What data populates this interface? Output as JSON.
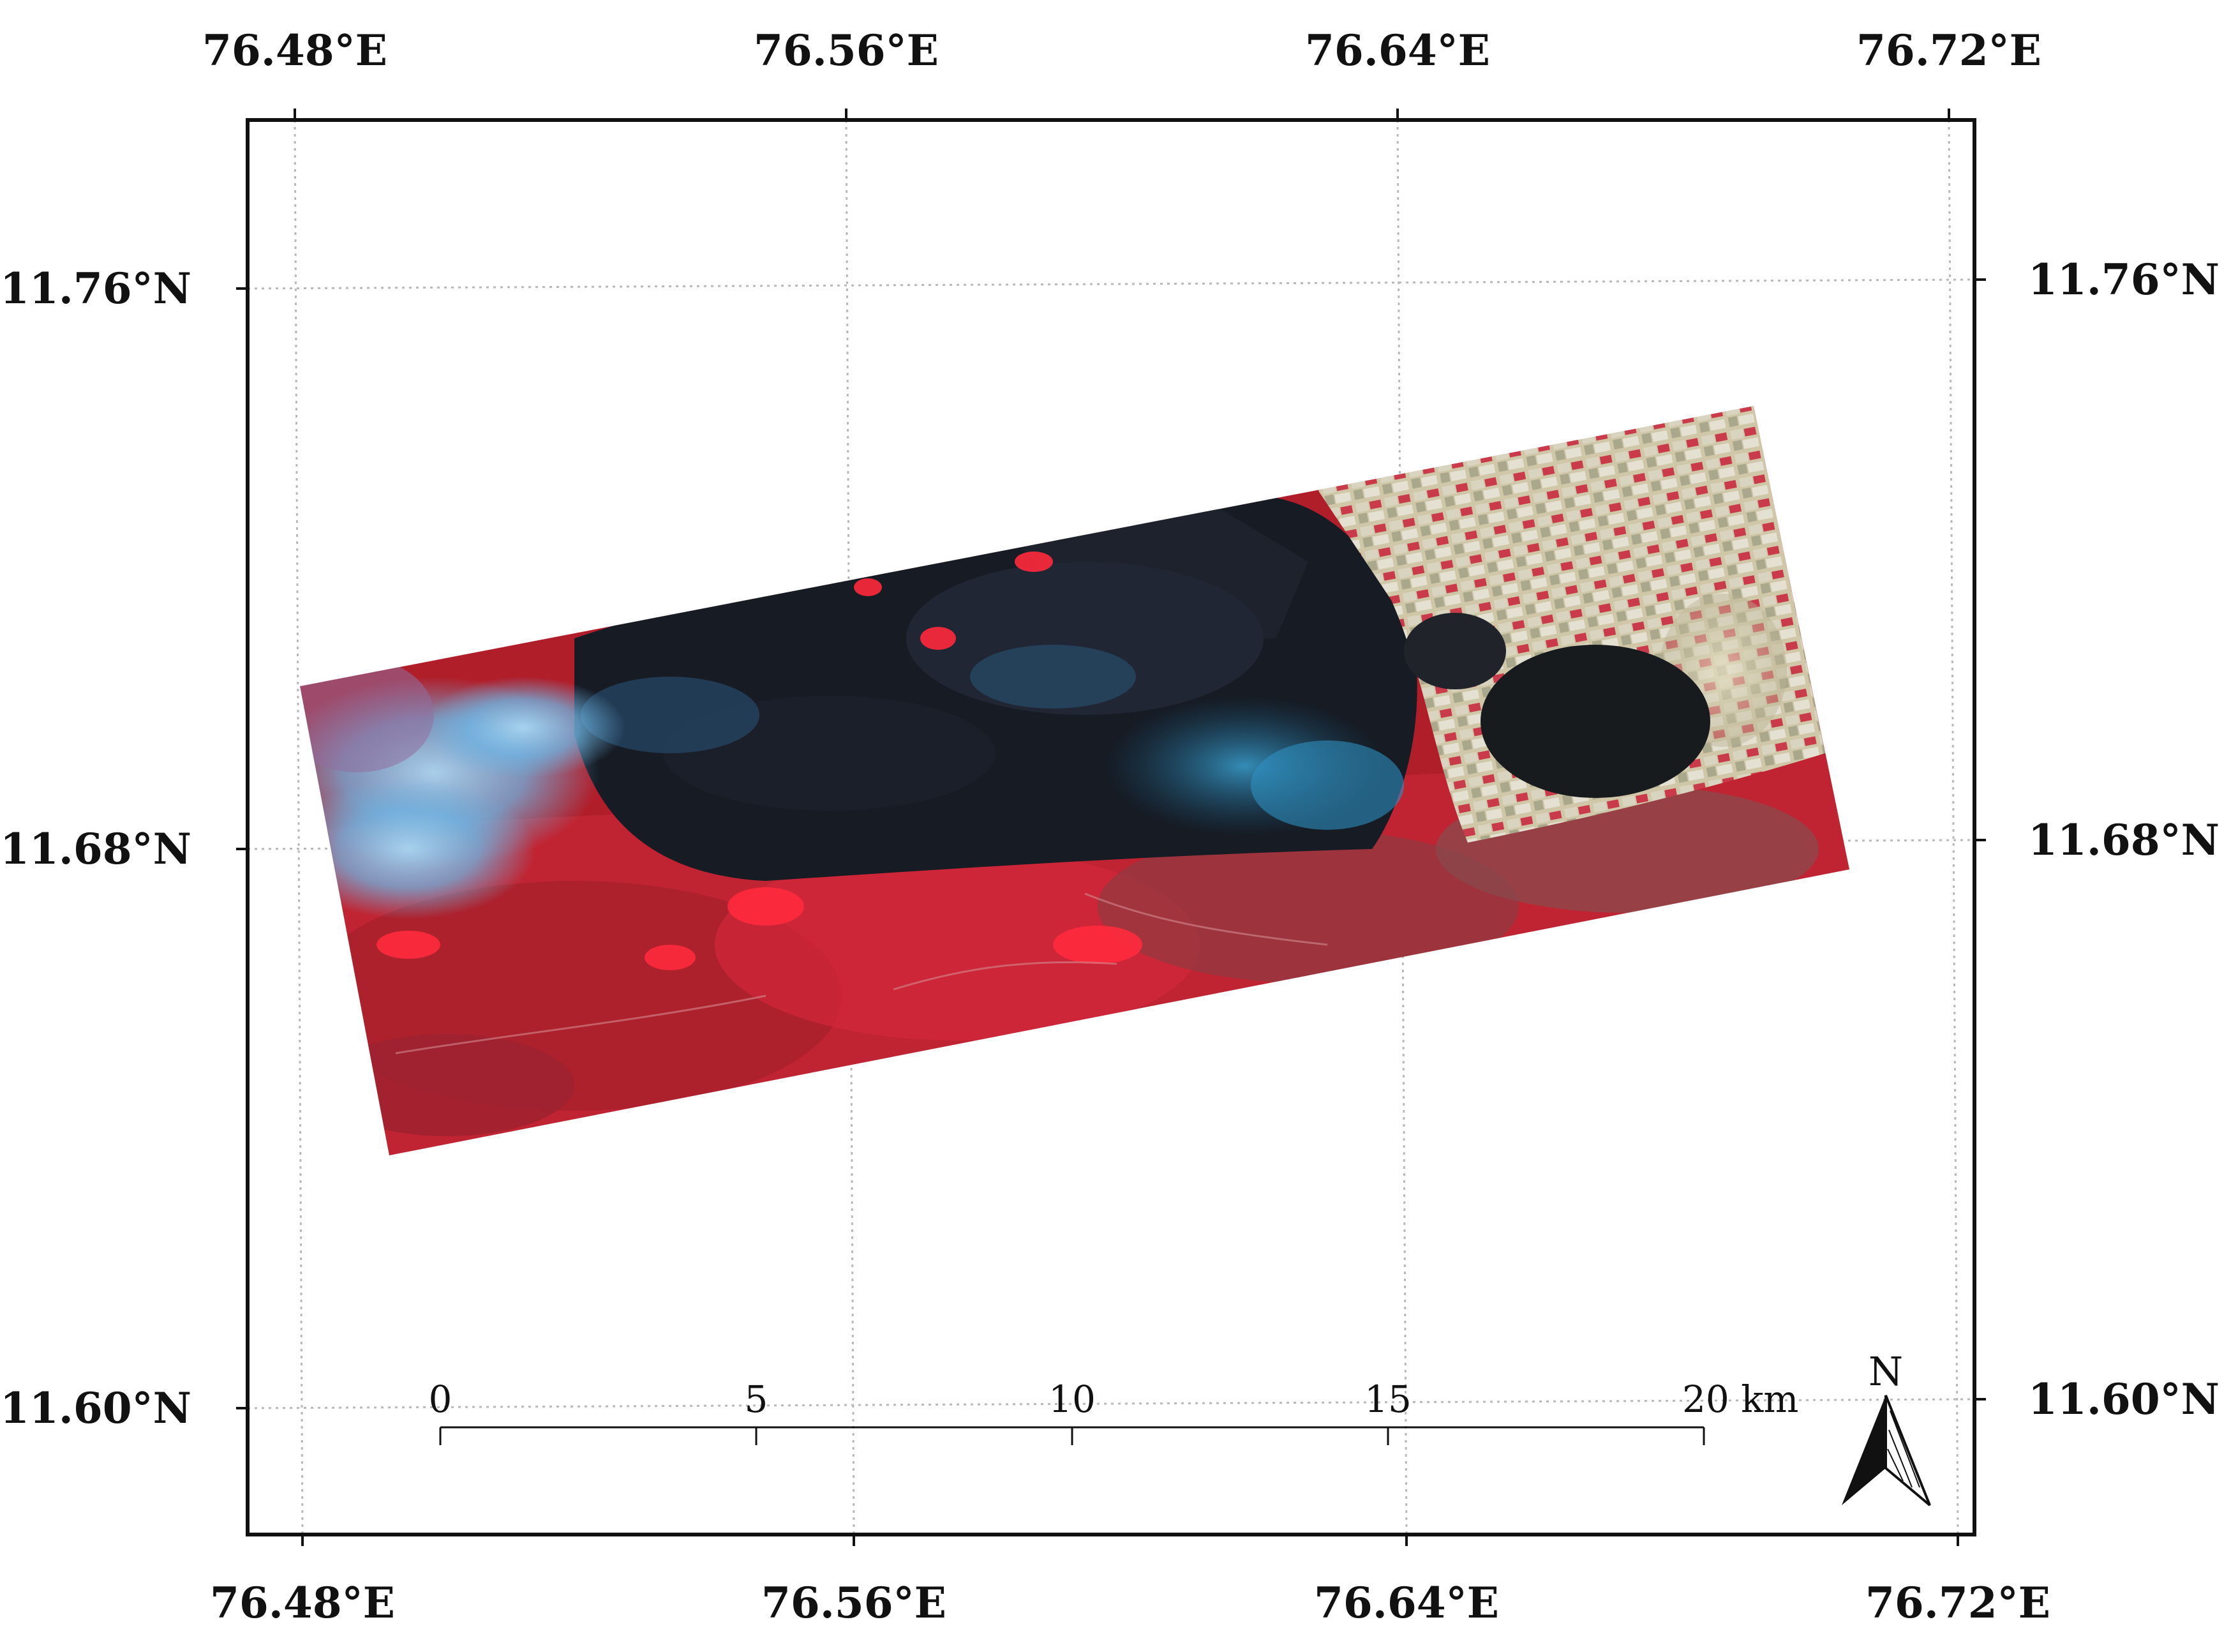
{
  "map": {
    "longitude_labels": [
      "76.48°E",
      "76.56°E",
      "76.64°E",
      "76.72°E"
    ],
    "latitude_labels": [
      "11.76°N",
      "11.68°N",
      "11.60°N"
    ],
    "longitude_values": [
      76.48,
      76.56,
      76.64,
      76.72
    ],
    "latitude_values": [
      11.76,
      11.68,
      11.6
    ],
    "scale_bar": {
      "ticks": [
        "0",
        "5",
        "10",
        "15",
        "20 km"
      ]
    },
    "north_arrow": {
      "label": "N"
    },
    "colors": {
      "frame": "#111111",
      "graticule": "#b8b8b8",
      "vegetation_red": "#c8202c",
      "burn_scar_dark": "#151a22",
      "smoke_blue": "#6fb6e4",
      "agriculture_pale": "#d8d2b8"
    }
  }
}
